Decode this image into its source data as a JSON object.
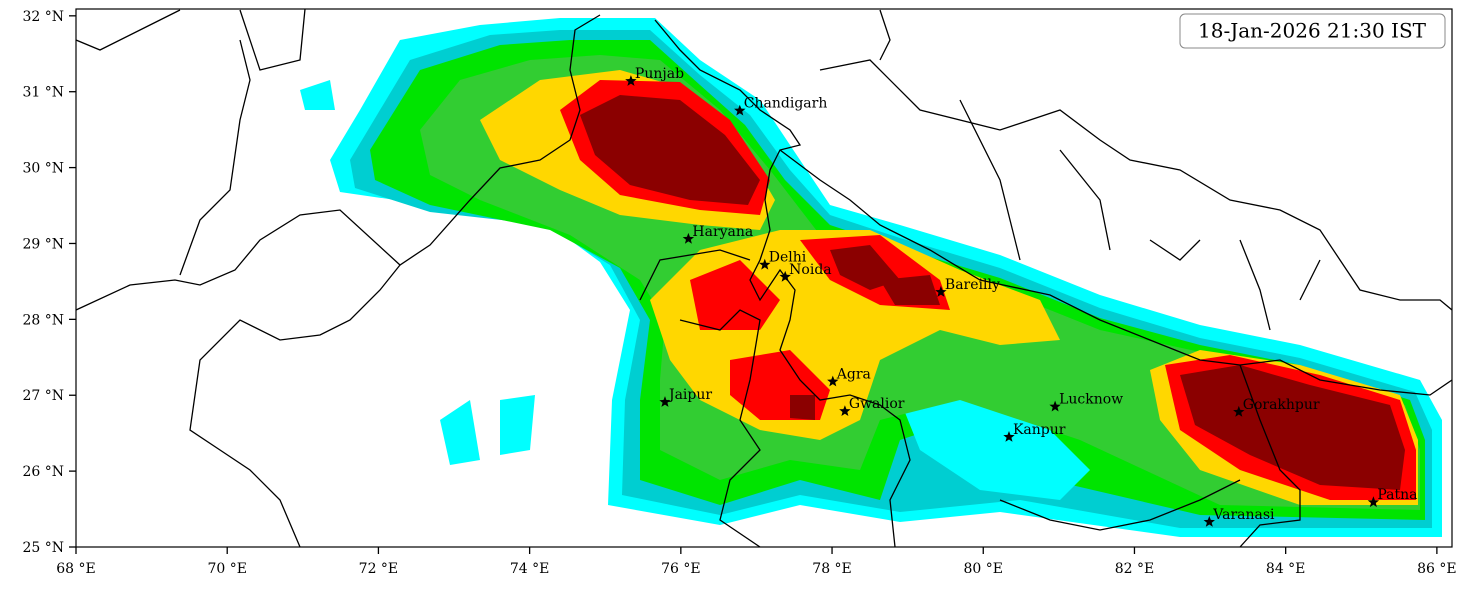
{
  "map_data": {
    "timestamp": "18-Jan-2026 21:30 IST",
    "xlim": [
      68,
      86.2
    ],
    "ylim": [
      25,
      32.09
    ],
    "xticks": [
      {
        "value": 68,
        "label": "68 °E"
      },
      {
        "value": 70,
        "label": "70 °E"
      },
      {
        "value": 72,
        "label": "72 °E"
      },
      {
        "value": 74,
        "label": "74 °E"
      },
      {
        "value": 76,
        "label": "76 °E"
      },
      {
        "value": 78,
        "label": "78 °E"
      },
      {
        "value": 80,
        "label": "80 °E"
      },
      {
        "value": 82,
        "label": "82 °E"
      },
      {
        "value": 84,
        "label": "84 °E"
      },
      {
        "value": 86,
        "label": "86 °E"
      }
    ],
    "yticks": [
      {
        "value": 25,
        "label": "25 °N"
      },
      {
        "value": 26,
        "label": "26 °N"
      },
      {
        "value": 27,
        "label": "27 °N"
      },
      {
        "value": 28,
        "label": "28 °N"
      },
      {
        "value": 29,
        "label": "29 °N"
      },
      {
        "value": 30,
        "label": "30 °N"
      },
      {
        "value": 31,
        "label": "31 °N"
      },
      {
        "value": 32,
        "label": "32 °N"
      }
    ],
    "cities": [
      {
        "name": "Punjab",
        "lon": 75.34,
        "lat": 31.14
      },
      {
        "name": "Chandigarh",
        "lon": 76.78,
        "lat": 30.75
      },
      {
        "name": "Haryana",
        "lon": 76.1,
        "lat": 29.06
      },
      {
        "name": "Delhi",
        "lon": 77.11,
        "lat": 28.72
      },
      {
        "name": "Noida",
        "lon": 77.38,
        "lat": 28.56
      },
      {
        "name": "Bareilly",
        "lon": 79.44,
        "lat": 28.36
      },
      {
        "name": "Agra",
        "lon": 78.01,
        "lat": 27.18
      },
      {
        "name": "Jaipur",
        "lon": 75.79,
        "lat": 26.91
      },
      {
        "name": "Gwalior",
        "lon": 78.17,
        "lat": 26.79
      },
      {
        "name": "Lucknow",
        "lon": 80.95,
        "lat": 26.85
      },
      {
        "name": "Kanpur",
        "lon": 80.34,
        "lat": 26.45
      },
      {
        "name": "Gorakhpur",
        "lon": 83.38,
        "lat": 26.78
      },
      {
        "name": "Patna",
        "lon": 85.16,
        "lat": 25.59
      },
      {
        "name": "Varanasi",
        "lon": 82.99,
        "lat": 25.33
      }
    ]
  }
}
